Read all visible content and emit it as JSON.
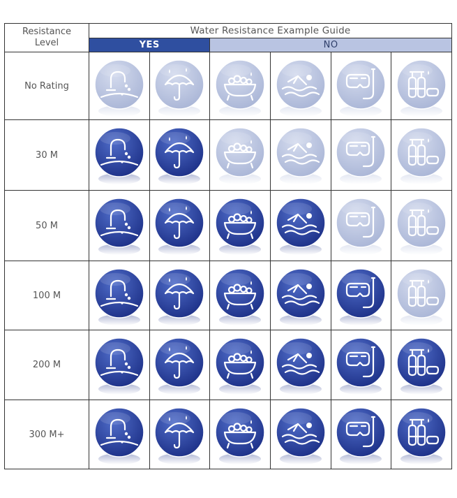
{
  "header": {
    "level_label_line1": "Resistance",
    "level_label_line2": "Level",
    "title": "Water Resistance Example Guide",
    "yes_label": "YES",
    "no_label": "NO"
  },
  "activities": [
    {
      "key": "faucet",
      "icon": "faucet-icon"
    },
    {
      "key": "rain",
      "icon": "umbrella-icon"
    },
    {
      "key": "bath",
      "icon": "bathtub-icon"
    },
    {
      "key": "swim",
      "icon": "swimmer-icon"
    },
    {
      "key": "snorkel",
      "icon": "snorkel-mask-icon"
    },
    {
      "key": "dive",
      "icon": "scuba-tanks-icon"
    }
  ],
  "rows": [
    {
      "level": "No Rating",
      "suitable": 0
    },
    {
      "level": "30 M",
      "suitable": 2
    },
    {
      "level": "50 M",
      "suitable": 4
    },
    {
      "level": "100 M",
      "suitable": 5
    },
    {
      "level": "200 M",
      "suitable": 6
    },
    {
      "level": "300 M+",
      "suitable": 6
    }
  ],
  "colors": {
    "active_dark": "#1c2f86",
    "active_light": "#4f6cc8",
    "inactive_dark": "#a9b5d6",
    "inactive_light": "#d4dbee",
    "yes_bg": "#2f4fa0",
    "no_bg": "#b9c4e2"
  }
}
